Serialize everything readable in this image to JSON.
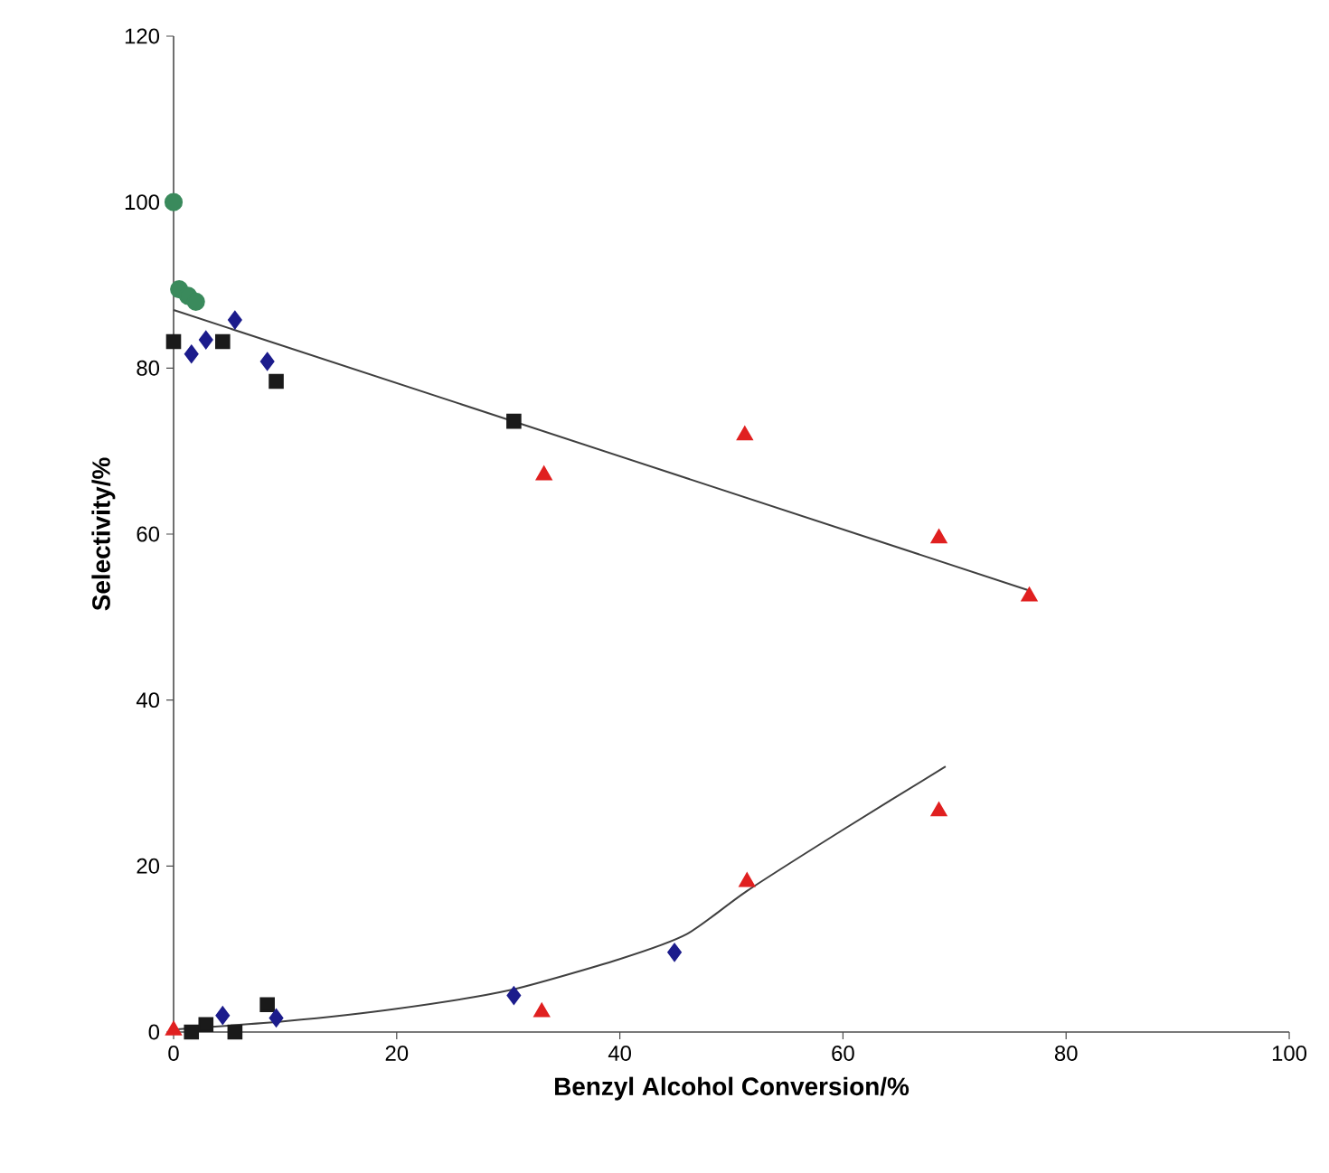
{
  "chart_data": {
    "type": "scatter",
    "xlabel": "Benzyl Alcohol Conversion/%",
    "ylabel": "Selectivity/%",
    "xlim": [
      0,
      100
    ],
    "xticks": [
      0,
      20,
      40,
      60,
      80,
      100
    ],
    "ylim": [
      0,
      120
    ],
    "yticks": [
      0,
      20,
      40,
      60,
      80,
      100,
      120
    ],
    "grid": false,
    "series": [
      {
        "marker": "circle",
        "color": "#3a8a5c",
        "x": [
          0,
          0.5,
          1.3,
          2
        ],
        "values": [
          100,
          89.5,
          88.7,
          88
        ]
      },
      {
        "marker": "square",
        "color": "#1a1a1a",
        "x": [
          0,
          4.4,
          9.2,
          30.5
        ],
        "values": [
          83.2,
          83.2,
          78.4,
          73.6
        ]
      },
      {
        "marker": "diamond",
        "color": "#1c1c8c",
        "x": [
          1.6,
          2.9,
          5.5,
          8.4
        ],
        "values": [
          81.7,
          83.4,
          85.8,
          80.8
        ]
      },
      {
        "marker": "triangle",
        "color": "#e02020",
        "x": [
          33.2,
          51.2,
          68.6,
          76.7
        ],
        "values": [
          67.1,
          71.9,
          59.5,
          52.5
        ]
      },
      {
        "type": "line",
        "marker": "none",
        "color": "#404040",
        "x": [
          0,
          76.7
        ],
        "values": [
          87,
          53.2
        ]
      },
      {
        "marker": "triangle",
        "color": "#e02020",
        "x": [
          0,
          33,
          51.4,
          68.6
        ],
        "values": [
          0.2,
          2.4,
          18.1,
          26.6
        ]
      },
      {
        "marker": "square",
        "color": "#1a1a1a",
        "x": [
          1.6,
          2.9,
          5.5,
          8.4
        ],
        "values": [
          0,
          0.9,
          0,
          3.3
        ]
      },
      {
        "marker": "diamond",
        "color": "#1c1c8c",
        "x": [
          4.4,
          9.2,
          30.5,
          44.9
        ],
        "values": [
          2.0,
          1.7,
          4.4,
          9.6
        ]
      },
      {
        "type": "line",
        "marker": "none",
        "color": "#404040",
        "x": [
          0,
          10,
          20,
          30,
          40,
          46,
          51.4,
          59.8,
          69.2
        ],
        "values": [
          0.3,
          1.3,
          2.8,
          5.0,
          8.8,
          11.8,
          17,
          24.2,
          32
        ]
      }
    ]
  }
}
